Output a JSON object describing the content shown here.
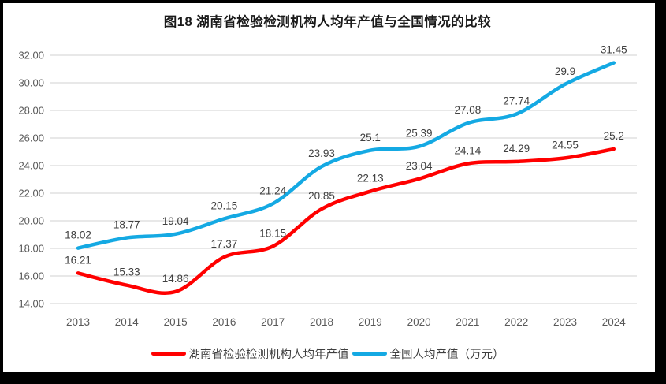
{
  "chart_data": {
    "type": "line",
    "title": "图18 湖南省检验检测机构人均年产值与全国情况的比较",
    "categories": [
      "2013",
      "2014",
      "2015",
      "2016",
      "2017",
      "2018",
      "2019",
      "2020",
      "2021",
      "2022",
      "2023",
      "2024"
    ],
    "series": [
      {
        "name": "湖南省检验检测机构人均年产值",
        "color": "#FF0000",
        "values": [
          16.21,
          15.33,
          14.86,
          17.37,
          18.15,
          20.85,
          22.13,
          23.04,
          24.14,
          24.29,
          24.55,
          25.2
        ],
        "labels": [
          "16.21",
          "15.33",
          "14.86",
          "17.37",
          "18.15",
          "20.85",
          "22.13",
          "23.04",
          "24.14",
          "24.29",
          "24.55",
          "25.2"
        ]
      },
      {
        "name": "全国人均产值（万元）",
        "color": "#14A9E3",
        "values": [
          18.02,
          18.77,
          19.04,
          20.15,
          21.24,
          23.93,
          25.1,
          25.39,
          27.08,
          27.74,
          29.9,
          31.45
        ],
        "labels": [
          "18.02",
          "18.77",
          "19.04",
          "20.15",
          "21.24",
          "23.93",
          "25.1",
          "25.39",
          "27.08",
          "27.74",
          "29.9",
          "31.45"
        ]
      }
    ],
    "xlabel": "",
    "ylabel": "",
    "ylim": [
      14,
      32
    ],
    "ytick_step": 2,
    "ytick_labels": [
      "14.00",
      "16.00",
      "18.00",
      "20.00",
      "22.00",
      "24.00",
      "26.00",
      "28.00",
      "30.00",
      "32.00"
    ],
    "grid": "horizontal",
    "gridline_color": "#D9D9D9",
    "axis_text_color": "#595959",
    "data_label_color": "#404040",
    "legend_position": "bottom"
  }
}
